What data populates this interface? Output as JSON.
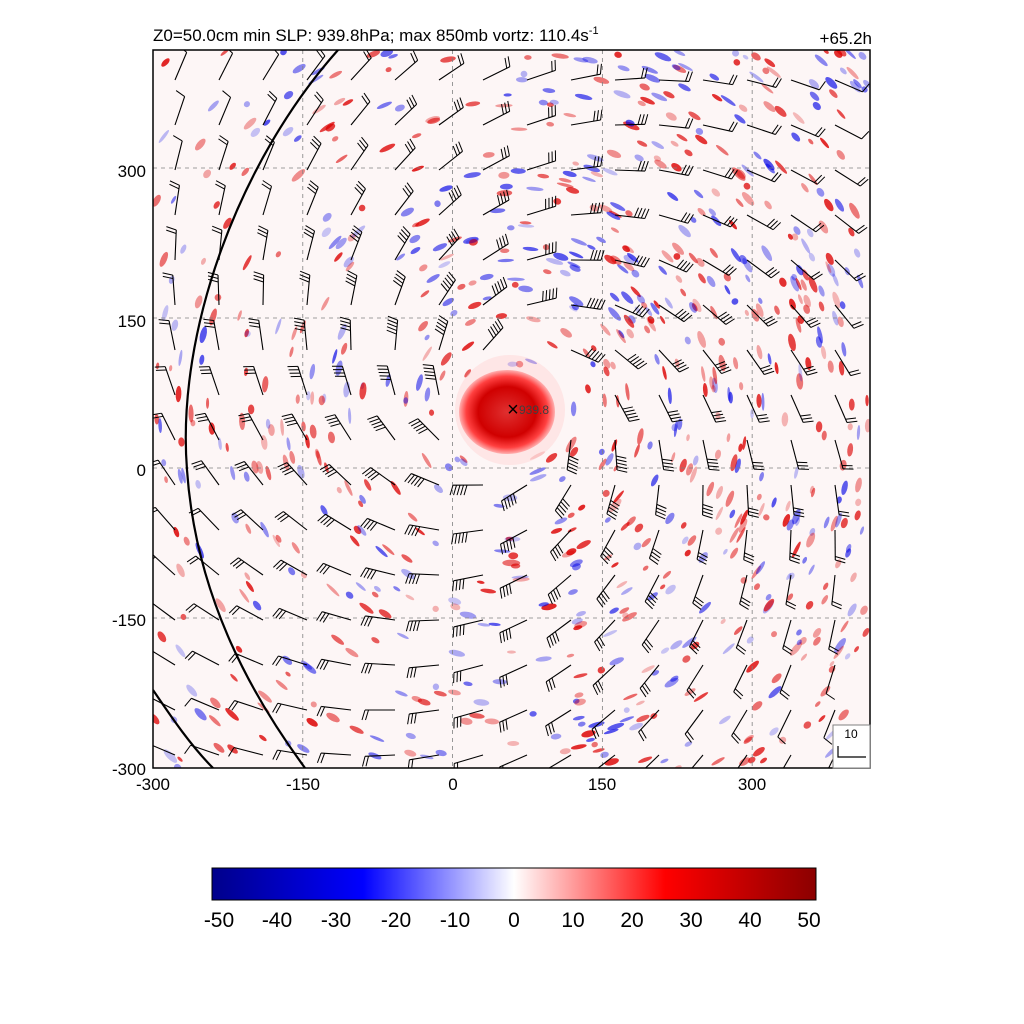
{
  "title": {
    "left_prefix": "Z0=50.0cm  min SLP: 939.8hPa; max 850mb vortz: 110.4s",
    "left_sup": "-1",
    "right": "+65.2h"
  },
  "map": {
    "x_ticks": [
      "-300",
      "-150",
      "0",
      "150",
      "300"
    ],
    "y_ticks": [
      "300",
      "150",
      "0",
      "-150",
      "-300"
    ],
    "x_tick_values": [
      -300,
      -150,
      0,
      150,
      300
    ],
    "y_tick_values": [
      300,
      150,
      0,
      -150,
      -300
    ],
    "x_range": [
      -300,
      418
    ],
    "y_range": [
      -300,
      418
    ],
    "center_marker": {
      "symbol": "×",
      "label": "939.8",
      "x": 60,
      "y": 60
    },
    "reference_vector": {
      "label": "10"
    },
    "colors": {
      "negative": "#0000a0",
      "positive": "#a00000",
      "grid": "#808080"
    }
  },
  "colorbar": {
    "labels": [
      "-50",
      "-40",
      "-30",
      "-20",
      "-10",
      "0",
      "10",
      "20",
      "30",
      "40",
      "50"
    ],
    "min": -50,
    "max": 50,
    "colors": [
      "#00008b",
      "#0000ff",
      "#ffffff",
      "#ff0000",
      "#8b0000"
    ]
  }
}
